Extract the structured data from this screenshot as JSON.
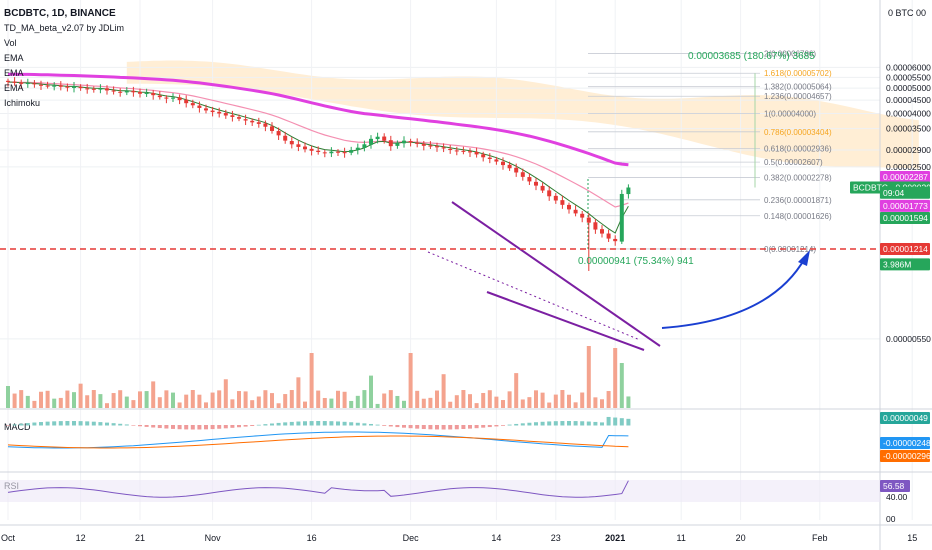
{
  "header": {
    "symbol": "BCDBTC, 1D, BINANCE",
    "indicators": [
      "TD_MA_beta_v2.07 by JDLim",
      "Vol",
      "EMA",
      "EMA",
      "EMA",
      "Ichimoku"
    ]
  },
  "price_axis": {
    "unit_label": "0 BTC 00",
    "ticks": [
      {
        "label": "0.00006000",
        "v": 6000
      },
      {
        "label": "0.00005500",
        "v": 5500
      },
      {
        "label": "0.00005000",
        "v": 5000
      },
      {
        "label": "0.00004500",
        "v": 4500
      },
      {
        "label": "0.00004000",
        "v": 4000
      },
      {
        "label": "0.00003500",
        "v": 3500
      },
      {
        "label": "0.00002900",
        "v": 2900
      },
      {
        "label": "0.00002500",
        "v": 2500
      },
      {
        "label": "0.00000550",
        "v": 550
      }
    ],
    "badges": [
      {
        "label": "0.00002287",
        "v": 2287,
        "color": "#e040e0"
      },
      {
        "label": "BCDBTC · 0.00002085",
        "v": 2085,
        "color": "#26a65b",
        "wide": true
      },
      {
        "label": "09:04",
        "v": 1990,
        "color": "#26a65b"
      },
      {
        "label": "0.00001773",
        "v": 1773,
        "color": "#e040e0"
      },
      {
        "label": "0.00001594",
        "v": 1594,
        "color": "#26a65b"
      },
      {
        "label": "0.00001214",
        "v": 1214,
        "color": "#e53935"
      },
      {
        "label": "3.986M",
        "v": 1060,
        "color": "#26a65b"
      }
    ]
  },
  "fib": [
    {
      "label": "2(0.00006786)",
      "v": 6786
    },
    {
      "label": "1.618(0.00005702)",
      "v": 5702,
      "color": "#f5a623"
    },
    {
      "label": "1.382(0.00005064)",
      "v": 5064
    },
    {
      "label": "1.236(0.00004657)",
      "v": 4657
    },
    {
      "label": "1(0.00004000)",
      "v": 4000
    },
    {
      "label": "0.786(0.00003404)",
      "v": 3404,
      "color": "#f5a623"
    },
    {
      "label": "0.618(0.00002936)",
      "v": 2936
    },
    {
      "label": "0.5(0.00002607)",
      "v": 2607
    },
    {
      "label": "0.382(0.00002278)",
      "v": 2278
    },
    {
      "label": "0.236(0.00001871)",
      "v": 1871
    },
    {
      "label": "0.148(0.00001626)",
      "v": 1626
    },
    {
      "label": "0(0.00001214)",
      "v": 1214
    }
  ],
  "annotations": {
    "target": "0.00003685 (180.67%) 3685",
    "move": "0.00000941 (75.34%) 941"
  },
  "macd": {
    "label": "MACD",
    "badges": [
      {
        "label": "0.00000049",
        "color": "#26a69a"
      },
      {
        "label": "-0.00000248",
        "color": "#2196f3"
      },
      {
        "label": "-0.00000296",
        "color": "#ff6d00"
      }
    ]
  },
  "rsi": {
    "label": "RSI",
    "value": "56.58",
    "tick": "40.00",
    "tick2": "00"
  },
  "time_axis": [
    {
      "label": "Oct",
      "d": 0
    },
    {
      "label": "12",
      "d": 11
    },
    {
      "label": "21",
      "d": 20
    },
    {
      "label": "Nov",
      "d": 31
    },
    {
      "label": "16",
      "d": 46
    },
    {
      "label": "Dec",
      "d": 61
    },
    {
      "label": "14",
      "d": 74
    },
    {
      "label": "23",
      "d": 83
    },
    {
      "label": "2021",
      "d": 92,
      "bold": true
    },
    {
      "label": "11",
      "d": 102
    },
    {
      "label": "20",
      "d": 111
    },
    {
      "label": "Feb",
      "d": 123
    },
    {
      "label": "15",
      "d": 137
    }
  ],
  "chart_data": {
    "type": "candlestick",
    "title": "BCDBTC, 1D, BINANCE",
    "x_axis": "date",
    "y_axis_log": true,
    "start_date": "2020-10-01",
    "closes": [
      5280,
      5240,
      5190,
      5230,
      5170,
      5120,
      5090,
      5110,
      5060,
      5020,
      5080,
      5000,
      4960,
      4940,
      4980,
      4900,
      4860,
      4830,
      4880,
      4820,
      4760,
      4790,
      4700,
      4620,
      4560,
      4600,
      4500,
      4380,
      4300,
      4200,
      4110,
      4050,
      4000,
      3930,
      3880,
      3820,
      3760,
      3700,
      3650,
      3560,
      3430,
      3300,
      3150,
      3050,
      2980,
      2920,
      2880,
      2850,
      2830,
      2860,
      2840,
      2820,
      2900,
      2960,
      3050,
      3200,
      3260,
      3150,
      3000,
      3080,
      3150,
      3100,
      3060,
      3010,
      2990,
      2970,
      2940,
      2900,
      2880,
      2860,
      2840,
      2790,
      2720,
      2680,
      2620,
      2540,
      2470,
      2380,
      2290,
      2200,
      2120,
      2030,
      1930,
      1860,
      1790,
      1720,
      1660,
      1600,
      1530,
      1440,
      1390,
      1330,
      1300,
      1970,
      2085
    ],
    "series": [
      {
        "name": "EMA",
        "type": "line",
        "color": "#e040e0"
      },
      {
        "name": "EMA",
        "type": "line",
        "color": "#f06292"
      },
      {
        "name": "EMA",
        "type": "line",
        "color": "#26a65b"
      }
    ],
    "volume_label": "Vol",
    "rsi_last": 56.58
  }
}
